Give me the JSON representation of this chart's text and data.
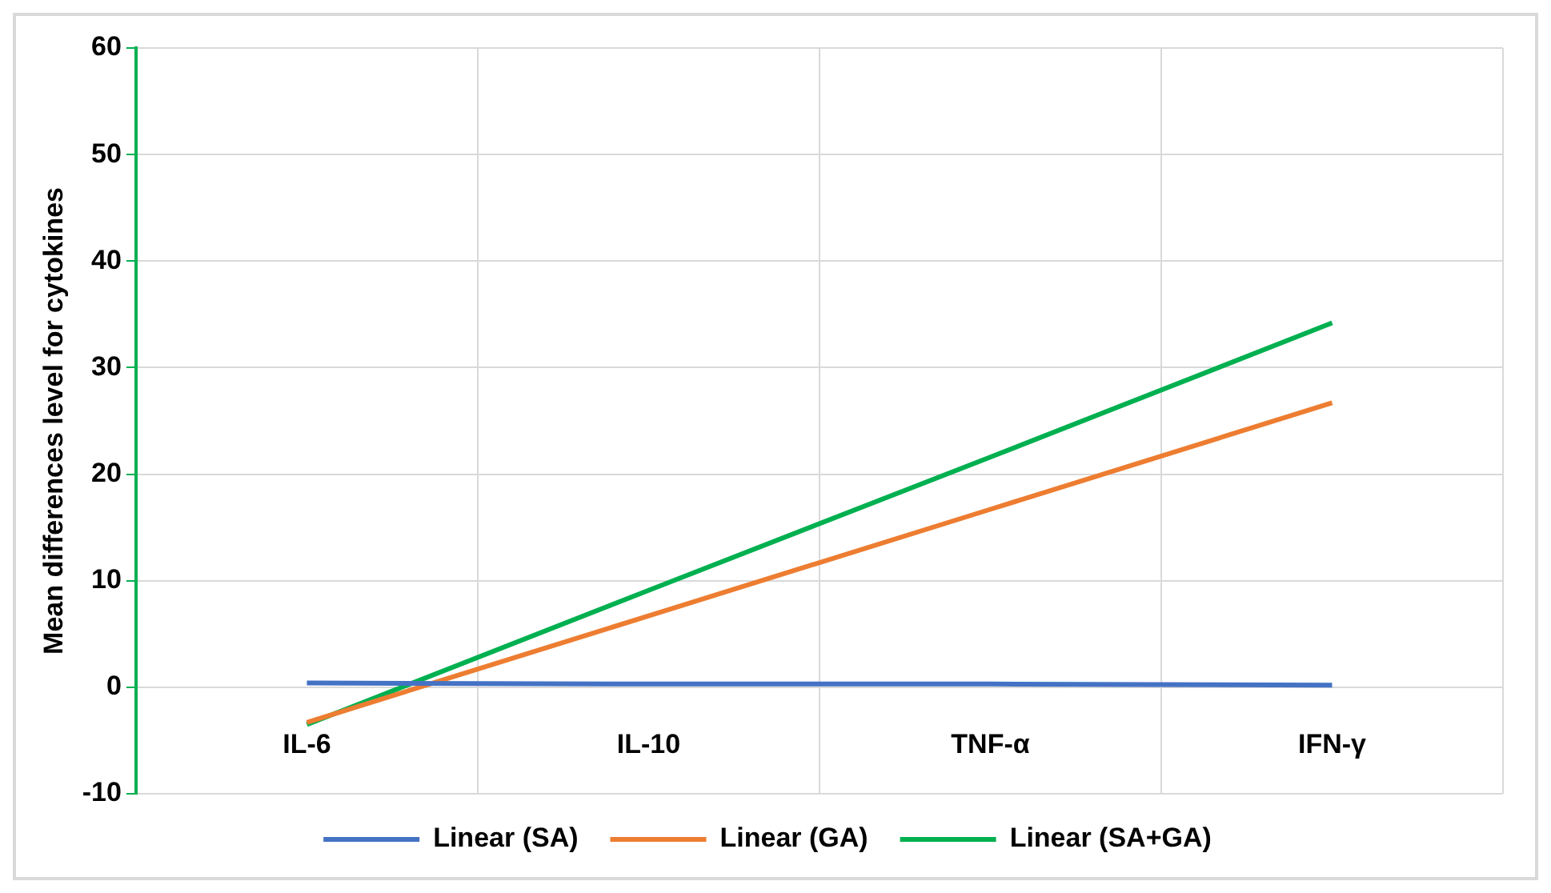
{
  "chart_data": {
    "type": "line",
    "ylabel": "Mean differences level for cytokines",
    "categories": [
      "IL-6",
      "IL-10",
      "TNF-α",
      "IFN-γ"
    ],
    "series": [
      {
        "name": "Linear (SA)",
        "color": "#4472c4",
        "values": [
          0.4,
          0.3,
          0.3,
          0.2
        ]
      },
      {
        "name": "Linear (GA)",
        "color": "#ed7d31",
        "values": [
          -3.3,
          6.7,
          16.7,
          26.7
        ]
      },
      {
        "name": "Linear (SA+GA)",
        "color": "#00b050",
        "values": [
          -3.5,
          9.1,
          21.6,
          34.2
        ]
      }
    ],
    "ylim": [
      -10,
      60
    ],
    "yticks": [
      -10,
      0,
      10,
      20,
      30,
      40,
      50,
      60
    ],
    "grid": true,
    "legend": "bottom",
    "marker": "none",
    "line_style": "solid"
  }
}
